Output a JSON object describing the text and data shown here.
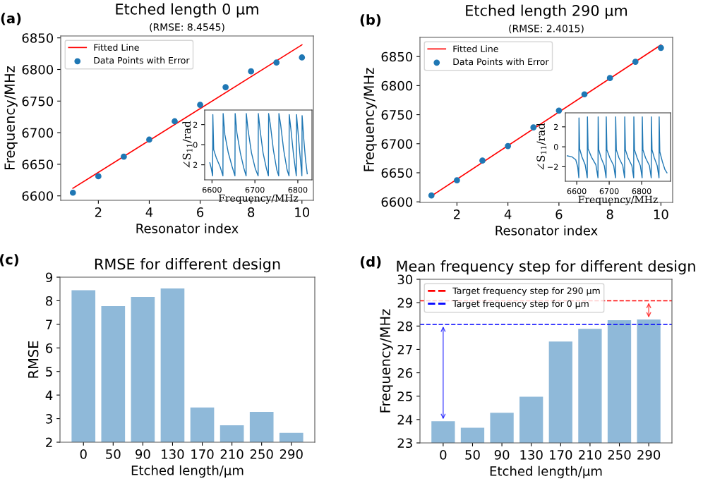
{
  "chart_data": [
    {
      "type": "line",
      "title": "Etched length 0 µm",
      "subtitle": "(RMSE: 8.4545)",
      "xlabel": "Resonator index",
      "ylabel": "Frequency/MHz",
      "annotations": [
        "(a)"
      ],
      "x": [
        1,
        2,
        3,
        4,
        5,
        6,
        7,
        8,
        9,
        10
      ],
      "xlim": [
        0.52,
        10.45
      ],
      "ylim": [
        6593,
        6853
      ],
      "xticks": [
        2,
        4,
        6,
        8,
        10
      ],
      "yticks": [
        6600,
        6650,
        6700,
        6750,
        6800,
        6850
      ],
      "legend": "top left",
      "grid": false,
      "series": [
        {
          "name": "Fitted Line",
          "type": "line",
          "color": "#ff0000",
          "x": [
            1,
            10
          ],
          "values": [
            6612,
            6839
          ]
        },
        {
          "name": "Data Points with Error",
          "type": "scatter",
          "marker": "circle",
          "color": "#1f77b4",
          "values": [
            6605,
            6631,
            6662,
            6689,
            6718,
            6744,
            6772,
            6797,
            6811,
            6819
          ]
        }
      ]
    },
    {
      "type": "line",
      "xlabel": "Frequency/MHz",
      "ylabel": "∠S$_{11}$/rad",
      "xlim": [
        6583,
        6833
      ],
      "ylim": [
        -3.5,
        3.45
      ],
      "xticks": [
        6600,
        6700,
        6800
      ],
      "yticks": [
        {
          "value": -2,
          "label": "2"
        },
        0,
        2
      ],
      "grid": false,
      "series": [
        {
          "color": "#1f77b4",
          "x": [
            6595,
            6598,
            6601.5,
            6602,
            6604,
            6610,
            6619,
            6625.5,
            6626,
            6630,
            6638,
            6647,
            6653.5,
            6654,
            6658,
            6666,
            6674,
            6679.5,
            6680,
            6684,
            6692,
            6701,
            6707.5,
            6708,
            6712,
            6719,
            6727,
            6731.5,
            6732,
            6736,
            6743,
            6751,
            6755.5,
            6756,
            6760,
            6767,
            6775,
            6779.5,
            6780,
            6784,
            6790,
            6796.5,
            6797,
            6800,
            6805,
            6809.5,
            6810,
            6814,
            6818,
            6822
          ],
          "values": [
            -1.8,
            -2.3,
            -3.1,
            3.0,
            -0.5,
            -1.3,
            -2.2,
            -3.1,
            3.1,
            1.0,
            -0.8,
            -2.2,
            -3.1,
            3.1,
            1.2,
            -0.8,
            -2.3,
            -3.1,
            3.1,
            1.5,
            -0.8,
            -2.4,
            -3.1,
            3.1,
            1.5,
            -0.8,
            -2.4,
            -3.1,
            3.1,
            2.0,
            -0.5,
            -2.5,
            -3.1,
            3.1,
            2.0,
            -0.5,
            -2.5,
            -3.1,
            3.0,
            1.5,
            -1.0,
            -3.1,
            3.0,
            1.5,
            -1.0,
            -3.1,
            2.9,
            0.5,
            -1.5,
            -2.9
          ]
        }
      ]
    },
    {
      "type": "line",
      "title": "Etched length 290 µm",
      "subtitle": "(RMSE: 2.4015)",
      "xlabel": "Resonator index",
      "ylabel": "Frequency/MHz",
      "annotations": [
        "(b)"
      ],
      "x": [
        1,
        2,
        3,
        4,
        5,
        6,
        7,
        8,
        9,
        10
      ],
      "xlim": [
        0.55,
        10.46
      ],
      "ylim": [
        6599,
        6883
      ],
      "xticks": [
        2,
        4,
        6,
        8,
        10
      ],
      "yticks": [
        6600,
        6650,
        6700,
        6750,
        6800,
        6850
      ],
      "legend": "top left",
      "grid": false,
      "series": [
        {
          "name": "Fitted Line",
          "type": "line",
          "color": "#ff0000",
          "x": [
            1,
            10
          ],
          "values": [
            6610,
            6870
          ]
        },
        {
          "name": "Data Points with Error",
          "type": "scatter",
          "marker": "circle",
          "color": "#1f77b4",
          "values": [
            6611,
            6637,
            6671,
            6696,
            6728,
            6757,
            6785,
            6813,
            6841,
            6865
          ]
        }
      ]
    },
    {
      "type": "line",
      "xlabel": "Frequency/MHz",
      "ylabel": "∠S$_{11}$/rad",
      "xlim": [
        6565,
        6889
      ],
      "ylim": [
        -3.45,
        3.4
      ],
      "xticks": [
        6600,
        6700,
        6800
      ],
      "yticks": [
        {
          "value": -2,
          "label": "−2"
        },
        0,
        2
      ],
      "grid": false,
      "series": [
        {
          "color": "#1f77b4",
          "x": [
            6571,
            6585,
            6597,
            6603,
            6606.5,
            6607,
            6609,
            6616,
            6626,
            6632.5,
            6633,
            6635,
            6645,
            6659,
            6665.5,
            6666,
            6668,
            6675,
            6685,
            6690.5,
            6691,
            6693,
            6702,
            6714,
            6719.5,
            6720,
            6722,
            6730,
            6742,
            6747.5,
            6748,
            6750,
            6758,
            6770,
            6775.5,
            6776,
            6778,
            6786,
            6796,
            6801.5,
            6802,
            6804,
            6812,
            6824,
            6829.5,
            6830,
            6832,
            6839,
            6848,
            6853.5,
            6854,
            6856,
            6864,
            6872,
            6878
          ],
          "values": [
            -0.9,
            -1.0,
            -1.3,
            -2.0,
            -3.1,
            2.9,
            -0.2,
            -1.0,
            -1.8,
            -3.1,
            3.0,
            -0.2,
            -1.0,
            -1.8,
            -3.1,
            3.0,
            -0.3,
            -1.1,
            -1.9,
            -3.1,
            3.0,
            -0.3,
            -1.1,
            -1.9,
            -3.1,
            3.0,
            -0.3,
            -1.1,
            -1.9,
            -3.1,
            3.0,
            -0.3,
            -1.1,
            -1.9,
            -3.1,
            3.0,
            -0.3,
            -1.1,
            -1.9,
            -3.1,
            3.0,
            -0.3,
            -1.1,
            -1.9,
            -3.1,
            3.0,
            -0.3,
            -1.1,
            -1.9,
            -3.1,
            3.0,
            -0.5,
            -1.5,
            -2.3,
            -2.6
          ]
        }
      ]
    },
    {
      "type": "bar",
      "title": "RMSE for different design",
      "xlabel": "Etched length/µm",
      "ylabel": "RMSE",
      "annotations": [
        "(c)"
      ],
      "categories": [
        "0",
        "50",
        "90",
        "130",
        "170",
        "210",
        "250",
        "290"
      ],
      "ylim": [
        2,
        9
      ],
      "yticks": [
        2,
        3,
        4,
        5,
        6,
        7,
        8,
        9
      ],
      "grid": false,
      "series": [
        {
          "color": "#8fb9d9",
          "values": [
            8.45,
            7.77,
            8.16,
            8.52,
            3.47,
            2.72,
            3.29,
            2.4
          ]
        }
      ]
    },
    {
      "type": "bar",
      "title": "Mean frequency step for different design",
      "xlabel": "Etched length/µm",
      "ylabel": "Frequency/MHz",
      "annotations": [
        "(d)"
      ],
      "categories": [
        "0",
        "50",
        "90",
        "130",
        "170",
        "210",
        "250",
        "290"
      ],
      "ylim": [
        23,
        30
      ],
      "yticks": [
        23,
        24,
        25,
        26,
        27,
        28,
        29,
        30
      ],
      "legend": "top left",
      "grid": false,
      "series": [
        {
          "color": "#8fb9d9",
          "values": [
            23.93,
            23.65,
            24.29,
            24.98,
            27.34,
            27.88,
            28.25,
            28.28
          ]
        }
      ],
      "ref_lines": [
        {
          "axis": "y",
          "value": 29.08,
          "label": "Target frequency step for 290 µm",
          "color": "#ff0000",
          "line_style": "dashed"
        },
        {
          "axis": "y",
          "value": 28.07,
          "label": "Target frequency step for 0 µm",
          "color": "#0000ff",
          "line_style": "dashed"
        }
      ]
    }
  ]
}
